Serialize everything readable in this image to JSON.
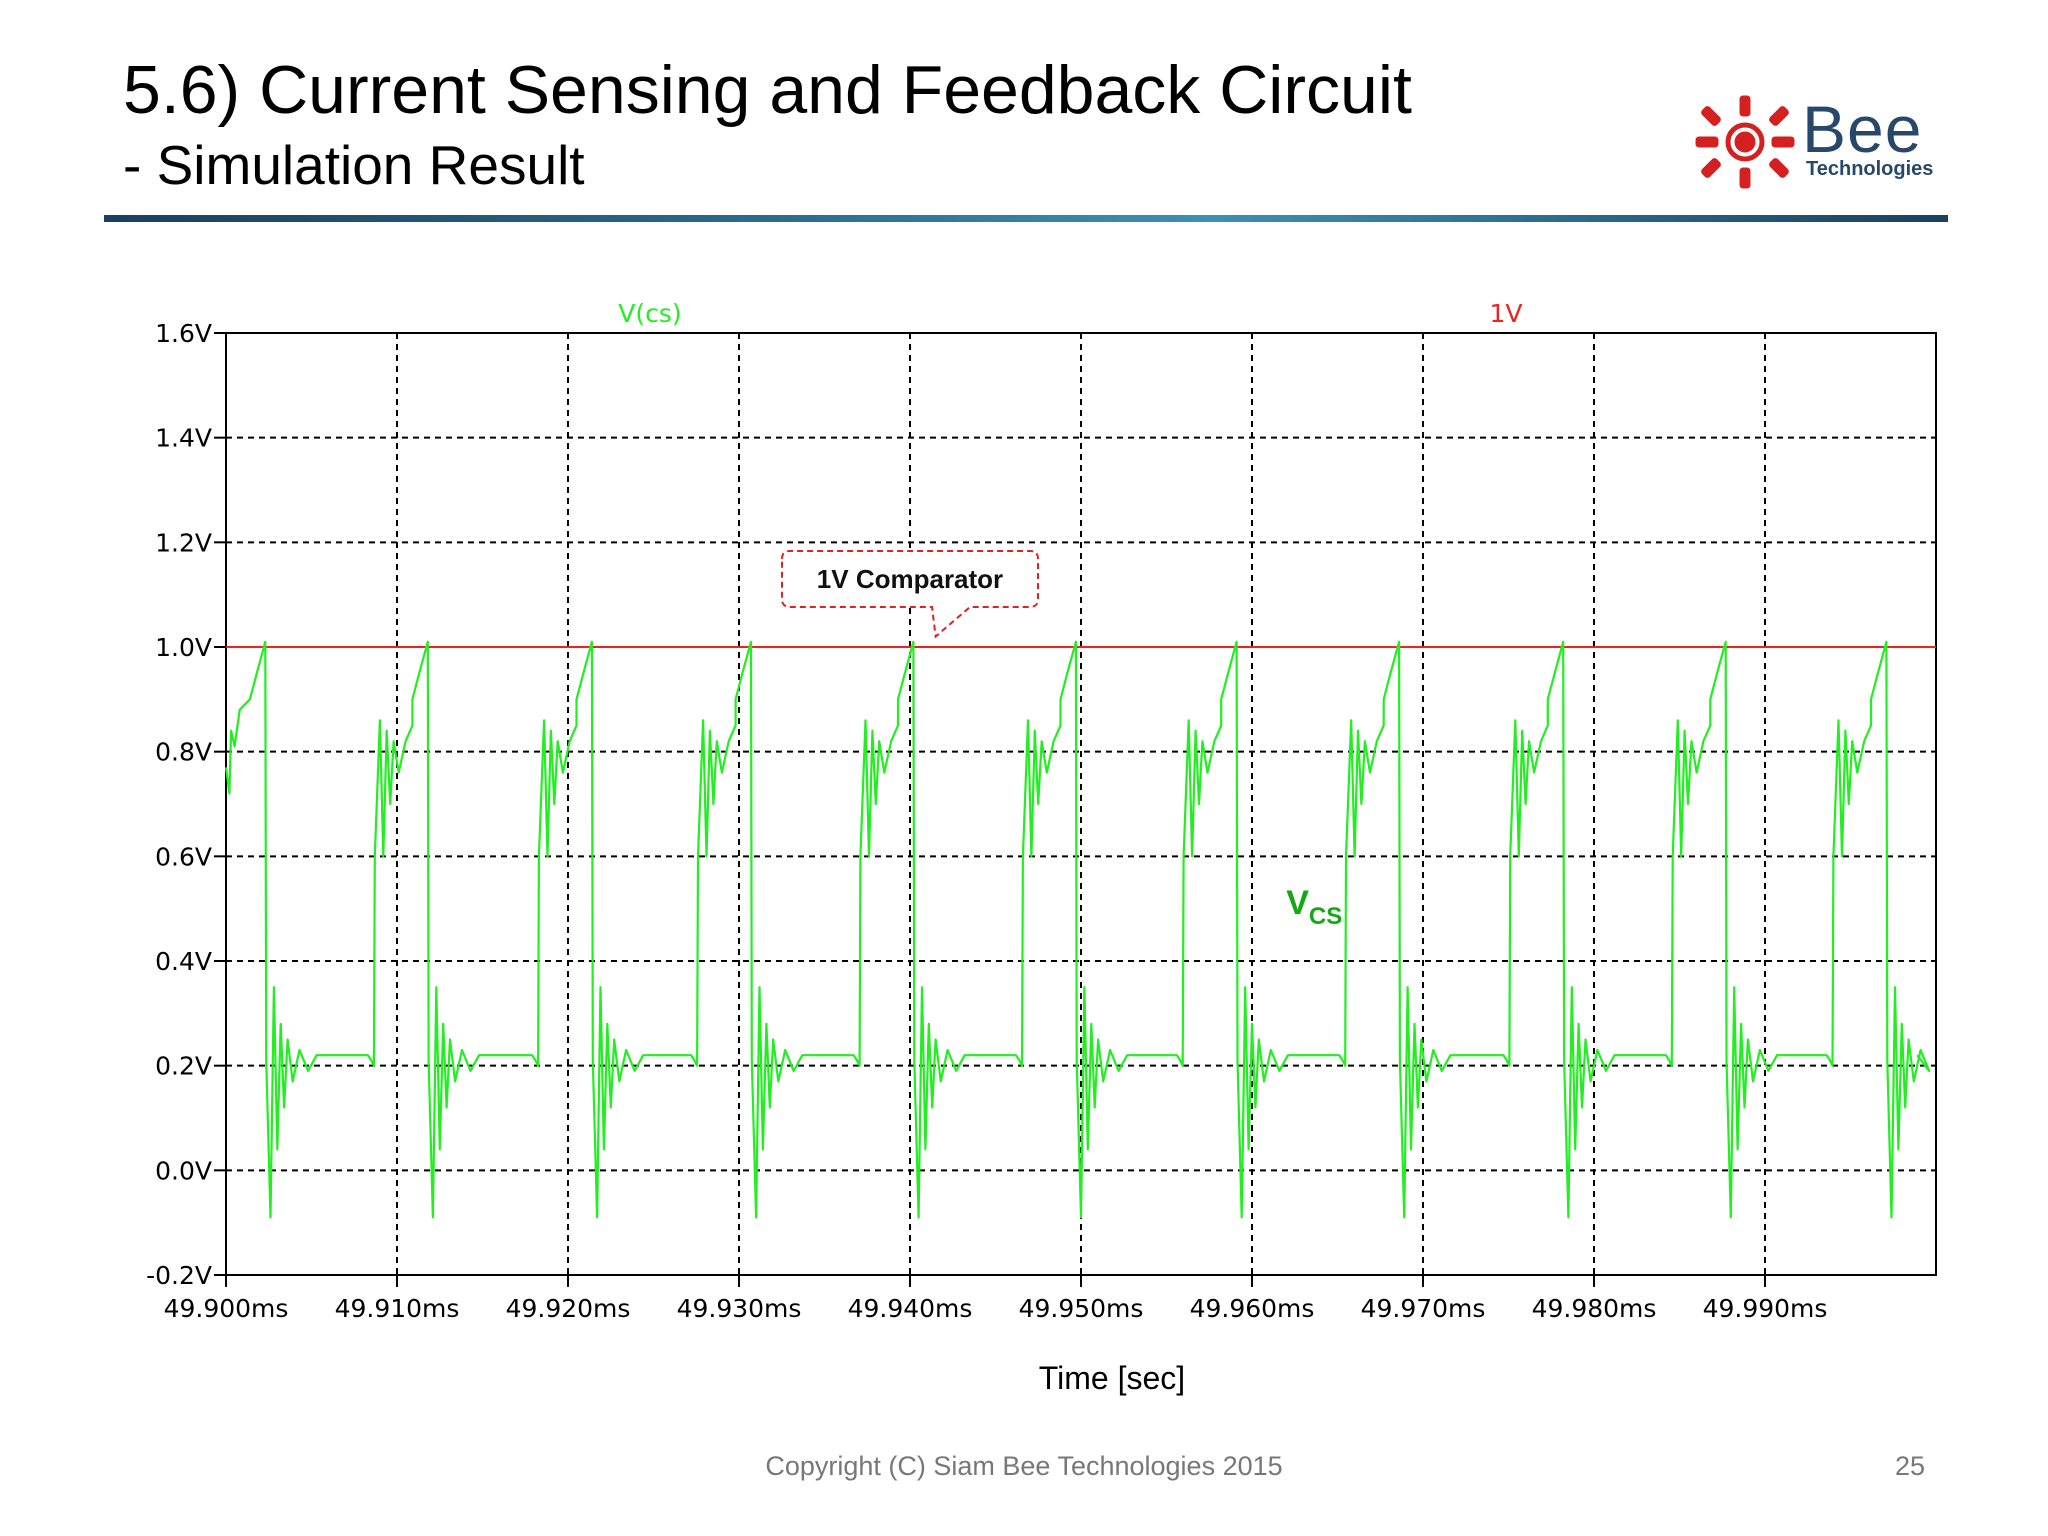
{
  "slide": {
    "title": "5.6) Current Sensing and Feedback Circuit",
    "subtitle": "- Simulation Result",
    "logo_text": "Bee",
    "logo_subtext": "Technologies",
    "footer": "Copyright (C) Siam Bee Technologies 2015",
    "page_number": "25"
  },
  "colors": {
    "vcs_trace": "#22ee22",
    "vcs_label": "#11aa11",
    "ref_line": "#ee2222",
    "logo_red": "#d42020",
    "logo_blue": "#27486b"
  },
  "chart_data": {
    "type": "line",
    "xlabel": "Time [sec]",
    "ylabel": "",
    "x_unit": "ms",
    "xlim": [
      49.9,
      50.0
    ],
    "ylim": [
      -0.2,
      1.6
    ],
    "x_ticks": [
      "49.900ms",
      "49.910ms",
      "49.920ms",
      "49.930ms",
      "49.940ms",
      "49.950ms",
      "49.960ms",
      "49.970ms",
      "49.980ms",
      "49.990ms"
    ],
    "x_tick_values": [
      49.9,
      49.91,
      49.92,
      49.93,
      49.94,
      49.95,
      49.96,
      49.97,
      49.98,
      49.99
    ],
    "y_ticks": [
      "1.6V",
      "1.4V",
      "1.2V",
      "1.0V",
      "0.8V",
      "0.6V",
      "0.4V",
      "0.2V",
      "0.0V",
      "-0.2V"
    ],
    "y_tick_values": [
      1.6,
      1.4,
      1.2,
      1.0,
      0.8,
      0.6,
      0.4,
      0.2,
      0.0,
      -0.2
    ],
    "grid": true,
    "legend_placement": "top",
    "series": [
      {
        "name": "V(cs)",
        "color": "#22ee22",
        "period_ms": 0.0095,
        "first_peak_ms": 49.9023,
        "peak_times_ms": [
          49.9023,
          49.9118,
          49.9214,
          49.9307,
          49.9402,
          49.9497,
          49.9591,
          49.9686,
          49.9782,
          49.9877,
          49.9971
        ],
        "peak_v": 1.01,
        "floor_v": 0.21,
        "ring_min_v": -0.1,
        "ring_max_v": 0.36,
        "pre_spike_v": 0.86,
        "ramp_start_v": 0.8
      },
      {
        "name": "1V",
        "color": "#ee2222",
        "value": 1.0
      }
    ],
    "annotations": [
      {
        "text": "1V Comparator",
        "x": 49.94,
        "y": 1.13,
        "target_x": 49.9415,
        "target_y": 1.02
      },
      {
        "text": "V",
        "subscript": "CS",
        "x": 49.962,
        "y": 0.49
      }
    ]
  }
}
